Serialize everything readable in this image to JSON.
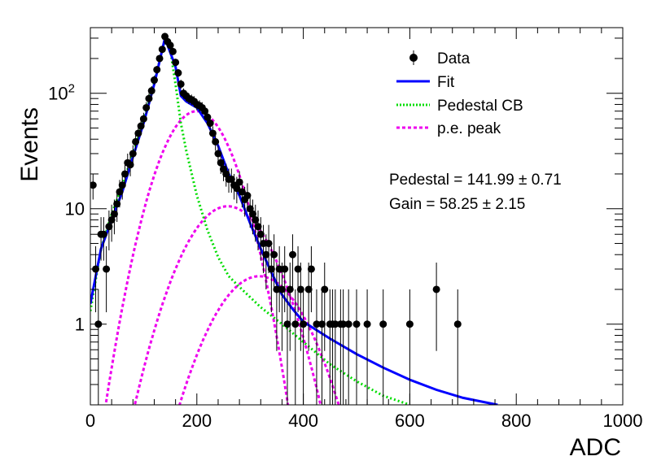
{
  "chart_data": {
    "type": "scatter",
    "title": "",
    "xlabel": "ADC",
    "ylabel": "Events",
    "xlim": [
      0,
      1000
    ],
    "ylim": [
      0.2,
      370
    ],
    "yscale": "log",
    "grid": false,
    "legend_position": "top-right",
    "x_ticks": [
      {
        "value": 0,
        "label": "0"
      },
      {
        "value": 200,
        "label": "200"
      },
      {
        "value": 400,
        "label": "400"
      },
      {
        "value": 600,
        "label": "600"
      },
      {
        "value": 800,
        "label": "800"
      },
      {
        "value": 1000,
        "label": "1000"
      }
    ],
    "y_ticks": [
      {
        "value": 1,
        "label": "1"
      },
      {
        "value": 10,
        "label": "10"
      },
      {
        "value": 100,
        "label": "10",
        "sup": "2"
      }
    ],
    "legend": [
      {
        "label": "Data",
        "style": "marker",
        "color": "#000000"
      },
      {
        "label": "Fit",
        "style": "solid",
        "color": "#0000ff"
      },
      {
        "label": "Pedestal CB",
        "style": "dotted",
        "color": "#00dd00"
      },
      {
        "label": "p.e. peak",
        "style": "dashed",
        "color": "#ee00ee"
      }
    ],
    "annotations": [
      {
        "text": "Pedestal = 141.99",
        "pm": "0.71"
      },
      {
        "text": "Gain = 58.25",
        "pm": "2.15"
      }
    ],
    "data_points": [
      {
        "x": 5,
        "y": 16
      },
      {
        "x": 10,
        "y": 3
      },
      {
        "x": 15,
        "y": 1
      },
      {
        "x": 20,
        "y": 6
      },
      {
        "x": 25,
        "y": 6
      },
      {
        "x": 30,
        "y": 3
      },
      {
        "x": 35,
        "y": 7
      },
      {
        "x": 40,
        "y": 8
      },
      {
        "x": 45,
        "y": 9
      },
      {
        "x": 50,
        "y": 11
      },
      {
        "x": 55,
        "y": 14
      },
      {
        "x": 60,
        "y": 16
      },
      {
        "x": 65,
        "y": 20
      },
      {
        "x": 70,
        "y": 25
      },
      {
        "x": 75,
        "y": 24
      },
      {
        "x": 80,
        "y": 30
      },
      {
        "x": 85,
        "y": 38
      },
      {
        "x": 90,
        "y": 45
      },
      {
        "x": 95,
        "y": 52
      },
      {
        "x": 100,
        "y": 60
      },
      {
        "x": 105,
        "y": 75
      },
      {
        "x": 110,
        "y": 90
      },
      {
        "x": 115,
        "y": 105
      },
      {
        "x": 120,
        "y": 130
      },
      {
        "x": 125,
        "y": 160
      },
      {
        "x": 130,
        "y": 200
      },
      {
        "x": 135,
        "y": 240
      },
      {
        "x": 140,
        "y": 310
      },
      {
        "x": 145,
        "y": 280
      },
      {
        "x": 150,
        "y": 260
      },
      {
        "x": 155,
        "y": 230
      },
      {
        "x": 160,
        "y": 185
      },
      {
        "x": 165,
        "y": 150
      },
      {
        "x": 170,
        "y": 120
      },
      {
        "x": 175,
        "y": 100
      },
      {
        "x": 180,
        "y": 95
      },
      {
        "x": 185,
        "y": 90
      },
      {
        "x": 190,
        "y": 88
      },
      {
        "x": 195,
        "y": 85
      },
      {
        "x": 200,
        "y": 80
      },
      {
        "x": 205,
        "y": 78
      },
      {
        "x": 210,
        "y": 75
      },
      {
        "x": 215,
        "y": 70
      },
      {
        "x": 220,
        "y": 62
      },
      {
        "x": 225,
        "y": 55
      },
      {
        "x": 230,
        "y": 45
      },
      {
        "x": 235,
        "y": 38
      },
      {
        "x": 240,
        "y": 30
      },
      {
        "x": 245,
        "y": 25
      },
      {
        "x": 250,
        "y": 22
      },
      {
        "x": 255,
        "y": 20
      },
      {
        "x": 260,
        "y": 18
      },
      {
        "x": 265,
        "y": 18
      },
      {
        "x": 270,
        "y": 16
      },
      {
        "x": 275,
        "y": 15
      },
      {
        "x": 280,
        "y": 17
      },
      {
        "x": 285,
        "y": 14
      },
      {
        "x": 290,
        "y": 12
      },
      {
        "x": 295,
        "y": 13
      },
      {
        "x": 300,
        "y": 10
      },
      {
        "x": 305,
        "y": 9
      },
      {
        "x": 310,
        "y": 8
      },
      {
        "x": 315,
        "y": 7
      },
      {
        "x": 320,
        "y": 6
      },
      {
        "x": 325,
        "y": 5
      },
      {
        "x": 330,
        "y": 4
      },
      {
        "x": 335,
        "y": 5
      },
      {
        "x": 340,
        "y": 3
      },
      {
        "x": 345,
        "y": 4
      },
      {
        "x": 350,
        "y": 2
      },
      {
        "x": 355,
        "y": 3
      },
      {
        "x": 360,
        "y": 2
      },
      {
        "x": 365,
        "y": 3
      },
      {
        "x": 370,
        "y": 1
      },
      {
        "x": 375,
        "y": 2
      },
      {
        "x": 380,
        "y": 4
      },
      {
        "x": 385,
        "y": 1
      },
      {
        "x": 390,
        "y": 3
      },
      {
        "x": 395,
        "y": 2
      },
      {
        "x": 400,
        "y": 1
      },
      {
        "x": 410,
        "y": 2
      },
      {
        "x": 415,
        "y": 3
      },
      {
        "x": 425,
        "y": 1
      },
      {
        "x": 435,
        "y": 1
      },
      {
        "x": 440,
        "y": 2
      },
      {
        "x": 450,
        "y": 1
      },
      {
        "x": 455,
        "y": 1
      },
      {
        "x": 460,
        "y": 1
      },
      {
        "x": 470,
        "y": 1
      },
      {
        "x": 475,
        "y": 1
      },
      {
        "x": 485,
        "y": 1
      },
      {
        "x": 500,
        "y": 1
      },
      {
        "x": 520,
        "y": 1
      },
      {
        "x": 550,
        "y": 1
      },
      {
        "x": 600,
        "y": 1
      },
      {
        "x": 650,
        "y": 2
      },
      {
        "x": 690,
        "y": 1
      }
    ],
    "fit_curve": [
      [
        0,
        1.5
      ],
      [
        20,
        4.5
      ],
      [
        40,
        8
      ],
      [
        60,
        14
      ],
      [
        80,
        28
      ],
      [
        100,
        55
      ],
      [
        120,
        120
      ],
      [
        140,
        300
      ],
      [
        160,
        170
      ],
      [
        170,
        95
      ],
      [
        180,
        85
      ],
      [
        200,
        75
      ],
      [
        220,
        55
      ],
      [
        240,
        35
      ],
      [
        260,
        20
      ],
      [
        280,
        13
      ],
      [
        300,
        7.5
      ],
      [
        320,
        4.5
      ],
      [
        340,
        2.8
      ],
      [
        360,
        1.8
      ],
      [
        380,
        1.35
      ],
      [
        400,
        1.05
      ],
      [
        450,
        0.75
      ],
      [
        500,
        0.55
      ],
      [
        550,
        0.42
      ],
      [
        600,
        0.33
      ],
      [
        650,
        0.27
      ],
      [
        700,
        0.23
      ],
      [
        765,
        0.2
      ]
    ],
    "pedestal_curve": [
      [
        0,
        1.3
      ],
      [
        20,
        4.5
      ],
      [
        40,
        9
      ],
      [
        60,
        16
      ],
      [
        80,
        30
      ],
      [
        100,
        58
      ],
      [
        120,
        125
      ],
      [
        140,
        290
      ],
      [
        150,
        240
      ],
      [
        160,
        120
      ],
      [
        170,
        55
      ],
      [
        180,
        32
      ],
      [
        200,
        13
      ],
      [
        220,
        6.5
      ],
      [
        240,
        3.8
      ],
      [
        260,
        2.6
      ],
      [
        280,
        2.1
      ],
      [
        320,
        1.4
      ],
      [
        360,
        1.0
      ],
      [
        400,
        0.7
      ],
      [
        450,
        0.45
      ],
      [
        500,
        0.32
      ],
      [
        550,
        0.24
      ],
      [
        600,
        0.2
      ]
    ],
    "pe_peak_curves": [
      {
        "mean": 200,
        "peak": 70,
        "sigma": 50
      },
      {
        "mean": 258,
        "peak": 10.5,
        "sigma": 62
      },
      {
        "mean": 317,
        "peak": 2.6,
        "sigma": 66
      }
    ]
  }
}
